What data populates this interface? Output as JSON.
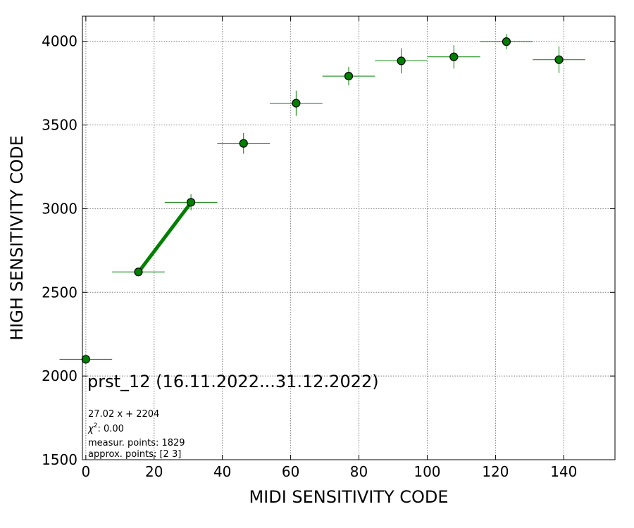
{
  "chart_data": {
    "type": "scatter",
    "xlabel": "MIDI SENSITIVITY CODE",
    "ylabel": "HIGH SENSITIVITY CODE",
    "xlim": [
      -1,
      155
    ],
    "ylim": [
      1500,
      4150
    ],
    "x_ticks": [
      0,
      20,
      40,
      60,
      80,
      100,
      120,
      140
    ],
    "y_ticks": [
      1500,
      2000,
      2500,
      3000,
      3500,
      4000
    ],
    "grid": true,
    "marker_color": "#008000",
    "series": [
      {
        "points": [
          {
            "x": 0,
            "y": 2100,
            "xerr": 7.7,
            "yerr": 0
          },
          {
            "x": 15.4,
            "y": 2622,
            "xerr": 7.7,
            "yerr": 22
          },
          {
            "x": 30.8,
            "y": 3038,
            "xerr": 7.7,
            "yerr": 48
          },
          {
            "x": 46.2,
            "y": 3390,
            "xerr": 7.7,
            "yerr": 62
          },
          {
            "x": 61.6,
            "y": 3630,
            "xerr": 7.7,
            "yerr": 75
          },
          {
            "x": 77.0,
            "y": 3792,
            "xerr": 7.7,
            "yerr": 55
          },
          {
            "x": 92.4,
            "y": 3883,
            "xerr": 7.7,
            "yerr": 75
          },
          {
            "x": 107.8,
            "y": 3907,
            "xerr": 7.7,
            "yerr": 70
          },
          {
            "x": 123.2,
            "y": 3998,
            "xerr": 7.7,
            "yerr": 45
          },
          {
            "x": 138.6,
            "y": 3890,
            "xerr": 7.7,
            "yerr": 80
          }
        ]
      }
    ],
    "fit_line": {
      "x": [
        15.4,
        30.8
      ],
      "y": [
        2620,
        3036
      ],
      "color": "#008000"
    },
    "annotations": {
      "title_text": "prst_12 (16.11.2022...31.12.2022)",
      "fit_equation": "27.02 x + 2204",
      "chi2_prefix": "χ",
      "chi2_exp": "2",
      "chi2_value": ": 0.00",
      "measured_points": "measur. points: 1829",
      "approx_points": "approx. points: [2 3]"
    }
  }
}
